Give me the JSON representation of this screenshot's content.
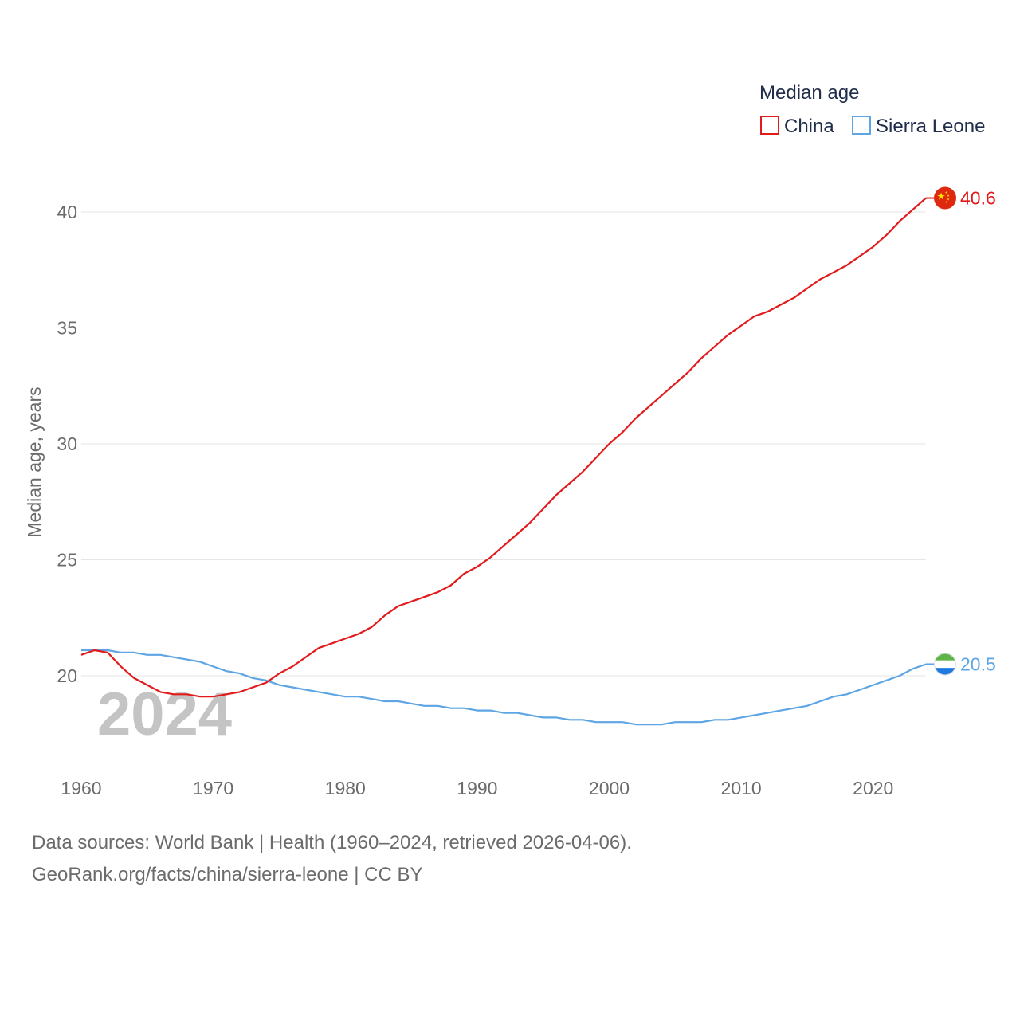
{
  "chart_data": {
    "type": "line",
    "title": "",
    "legend_title": "Median age",
    "legend_position": "top-right",
    "ylabel": "Median age, years",
    "xlabel": "",
    "xlim": [
      1960,
      2024
    ],
    "ylim": [
      16.5,
      42
    ],
    "x_ticks": [
      1960,
      1970,
      1980,
      1990,
      2000,
      2010,
      2020
    ],
    "y_ticks": [
      20,
      25,
      30,
      35,
      40
    ],
    "grid": true,
    "year_watermark": "2024",
    "series": [
      {
        "name": "China",
        "color": "#e31a1c",
        "end_label": "40.6",
        "flag_icon": "china-flag-icon",
        "x": [
          1960,
          1961,
          1962,
          1963,
          1964,
          1965,
          1966,
          1967,
          1968,
          1969,
          1970,
          1971,
          1972,
          1973,
          1974,
          1975,
          1976,
          1977,
          1978,
          1979,
          1980,
          1981,
          1982,
          1983,
          1984,
          1985,
          1986,
          1987,
          1988,
          1989,
          1990,
          1991,
          1992,
          1993,
          1994,
          1995,
          1996,
          1997,
          1998,
          1999,
          2000,
          2001,
          2002,
          2003,
          2004,
          2005,
          2006,
          2007,
          2008,
          2009,
          2010,
          2011,
          2012,
          2013,
          2014,
          2015,
          2016,
          2017,
          2018,
          2019,
          2020,
          2021,
          2022,
          2023,
          2024
        ],
        "values": [
          20.9,
          21.1,
          21.0,
          20.4,
          19.9,
          19.6,
          19.3,
          19.2,
          19.2,
          19.1,
          19.1,
          19.2,
          19.3,
          19.5,
          19.7,
          20.1,
          20.4,
          20.8,
          21.2,
          21.4,
          21.6,
          21.8,
          22.1,
          22.6,
          23.0,
          23.2,
          23.4,
          23.6,
          23.9,
          24.4,
          24.7,
          25.1,
          25.6,
          26.1,
          26.6,
          27.2,
          27.8,
          28.3,
          28.8,
          29.4,
          30.0,
          30.5,
          31.1,
          31.6,
          32.1,
          32.6,
          33.1,
          33.7,
          34.2,
          34.7,
          35.1,
          35.5,
          35.7,
          36.0,
          36.3,
          36.7,
          37.1,
          37.4,
          37.7,
          38.1,
          38.5,
          39.0,
          39.6,
          40.1,
          40.6
        ]
      },
      {
        "name": "Sierra Leone",
        "color": "#5da5e3",
        "end_label": "20.5",
        "flag_icon": "sierra-leone-flag-icon",
        "x": [
          1960,
          1961,
          1962,
          1963,
          1964,
          1965,
          1966,
          1967,
          1968,
          1969,
          1970,
          1971,
          1972,
          1973,
          1974,
          1975,
          1976,
          1977,
          1978,
          1979,
          1980,
          1981,
          1982,
          1983,
          1984,
          1985,
          1986,
          1987,
          1988,
          1989,
          1990,
          1991,
          1992,
          1993,
          1994,
          1995,
          1996,
          1997,
          1998,
          1999,
          2000,
          2001,
          2002,
          2003,
          2004,
          2005,
          2006,
          2007,
          2008,
          2009,
          2010,
          2011,
          2012,
          2013,
          2014,
          2015,
          2016,
          2017,
          2018,
          2019,
          2020,
          2021,
          2022,
          2023,
          2024
        ],
        "values": [
          21.1,
          21.1,
          21.1,
          21.0,
          21.0,
          20.9,
          20.9,
          20.8,
          20.7,
          20.6,
          20.4,
          20.2,
          20.1,
          19.9,
          19.8,
          19.6,
          19.5,
          19.4,
          19.3,
          19.2,
          19.1,
          19.1,
          19.0,
          18.9,
          18.9,
          18.8,
          18.7,
          18.7,
          18.6,
          18.6,
          18.5,
          18.5,
          18.4,
          18.4,
          18.3,
          18.2,
          18.2,
          18.1,
          18.1,
          18.0,
          18.0,
          18.0,
          17.9,
          17.9,
          17.9,
          18.0,
          18.0,
          18.0,
          18.1,
          18.1,
          18.2,
          18.3,
          18.4,
          18.5,
          18.6,
          18.7,
          18.9,
          19.1,
          19.2,
          19.4,
          19.6,
          19.8,
          20.0,
          20.3,
          20.5
        ]
      }
    ]
  },
  "footer": {
    "line1": "Data sources: World Bank | Health (1960–2024, retrieved 2026-04-06).",
    "line2": "GeoRank.org/facts/china/sierra-leone | CC BY"
  }
}
